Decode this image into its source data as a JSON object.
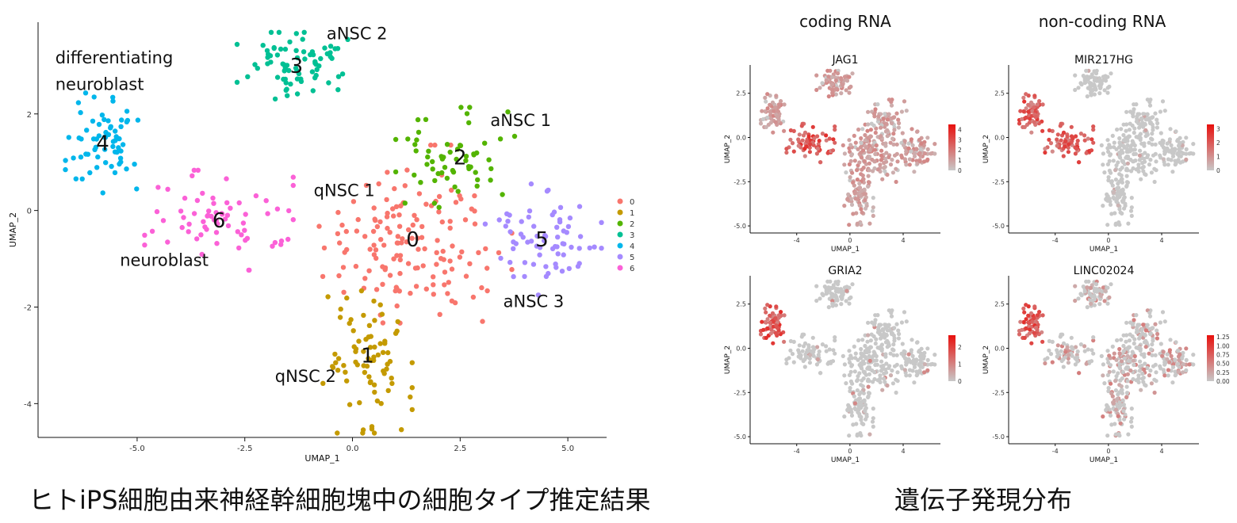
{
  "captions": {
    "left": "ヒトiPS細胞由来神経幹細胞塊中の細胞タイプ推定結果",
    "right": "遺伝子発現分布"
  },
  "column_titles": {
    "left": "coding RNA",
    "right": "non-coding RNA"
  },
  "colors": {
    "clusters": [
      "#F8766D",
      "#C49A00",
      "#53B400",
      "#00C094",
      "#00B6EB",
      "#A58AFF",
      "#FB61D7"
    ],
    "expr_low": "#c8c8c8",
    "expr_high": "#e8100d"
  },
  "chart_data": [
    {
      "type": "scatter",
      "title": "",
      "xlabel": "UMAP_1",
      "ylabel": "UMAP_2",
      "xlim": [
        -7.3,
        5.9
      ],
      "ylim": [
        -4.7,
        3.9
      ],
      "xticks": [
        -5.0,
        -2.5,
        0.0,
        2.5,
        5.0
      ],
      "xtick_labels": [
        "-5.0",
        "-2.5",
        "0.0",
        "2.5",
        "5.0"
      ],
      "yticks": [
        -4,
        -2,
        0,
        2
      ],
      "ytick_labels": [
        "-4",
        "-2",
        "0",
        "2"
      ],
      "legend": {
        "position": "right",
        "labels": [
          "0",
          "1",
          "2",
          "3",
          "4",
          "5",
          "6"
        ]
      },
      "clusters": [
        {
          "id": "0",
          "label": "0",
          "center": [
            1.4,
            -0.6
          ],
          "spread": [
            1.0,
            0.85
          ],
          "n": 150
        },
        {
          "id": "1",
          "label": "1",
          "center": [
            0.35,
            -3.0
          ],
          "spread": [
            0.45,
            0.7
          ],
          "n": 80
        },
        {
          "id": "2",
          "label": "2",
          "center": [
            2.5,
            1.1
          ],
          "spread": [
            0.65,
            0.45
          ],
          "n": 60
        },
        {
          "id": "3",
          "label": "3",
          "center": [
            -1.3,
            3.0
          ],
          "spread": [
            0.6,
            0.3
          ],
          "n": 75
        },
        {
          "id": "4",
          "label": "4",
          "center": [
            -5.8,
            1.4
          ],
          "spread": [
            0.5,
            0.45
          ],
          "n": 65
        },
        {
          "id": "5",
          "label": "5",
          "center": [
            4.4,
            -0.6
          ],
          "spread": [
            0.6,
            0.5
          ],
          "n": 70
        },
        {
          "id": "6",
          "label": "6",
          "center": [
            -3.1,
            -0.2
          ],
          "spread": [
            0.75,
            0.45
          ],
          "n": 70
        }
      ],
      "annotations": [
        {
          "text": "differentiating",
          "x": -6.9,
          "y": 3.05
        },
        {
          "text": "neuroblast",
          "x": -6.9,
          "y": 2.5
        },
        {
          "text": "aNSC 2",
          "x": -0.6,
          "y": 3.55
        },
        {
          "text": "aNSC 1",
          "x": 3.2,
          "y": 1.75
        },
        {
          "text": "qNSC 1",
          "x": -0.9,
          "y": 0.3
        },
        {
          "text": "neuroblast",
          "x": -5.4,
          "y": -1.15
        },
        {
          "text": "aNSC 3",
          "x": 3.5,
          "y": -2.0
        },
        {
          "text": "qNSC 2",
          "x": -1.8,
          "y": -3.55
        }
      ]
    },
    {
      "type": "scatter",
      "title": "JAG1",
      "xlabel": "UMAP_1",
      "ylabel": "UMAP_2",
      "xlim": [
        -7.5,
        6.8
      ],
      "ylim": [
        -5.4,
        4.1
      ],
      "xticks": [
        -4,
        0,
        4
      ],
      "xtick_labels": [
        "-4",
        "0",
        "4"
      ],
      "yticks": [
        2.5,
        0.0,
        -2.5,
        -5.0
      ],
      "ytick_labels": [
        "2.5",
        "0.0",
        "-2.5",
        "-5.0"
      ],
      "legend": {
        "position": "right",
        "max": 4.5,
        "ticks": [
          4,
          3,
          2,
          1,
          0
        ],
        "tick_labels": [
          "4",
          "3",
          "2",
          "1",
          "0"
        ]
      },
      "expression": {
        "high_clusters": [
          "6"
        ],
        "high_level": 3.5,
        "base_level": 1.4,
        "base_prob": 0.9
      }
    },
    {
      "type": "scatter",
      "title": "MIR217HG",
      "xlabel": "UMAP_1",
      "ylabel": "UMAP_2",
      "xlim": [
        -7.5,
        6.8
      ],
      "ylim": [
        -5.4,
        4.1
      ],
      "xticks": [
        -4,
        0,
        4
      ],
      "xtick_labels": [
        "-4",
        "0",
        "4"
      ],
      "yticks": [
        2.5,
        0.0,
        -2.5,
        -5.0
      ],
      "ytick_labels": [
        "2.5",
        "0.0",
        "-2.5",
        "-5.0"
      ],
      "legend": {
        "position": "right",
        "max": 3.3,
        "ticks": [
          3,
          2,
          1,
          0
        ],
        "tick_labels": [
          "3",
          "2",
          "1",
          "0"
        ]
      },
      "expression": {
        "high_clusters": [
          "6",
          "4"
        ],
        "high_level": 2.4,
        "base_level": 0.6,
        "base_prob": 0.05
      }
    },
    {
      "type": "scatter",
      "title": "GRIA2",
      "xlabel": "UMAP_1",
      "ylabel": "UMAP_2",
      "xlim": [
        -7.5,
        6.8
      ],
      "ylim": [
        -5.4,
        4.1
      ],
      "xticks": [
        -4,
        0,
        4
      ],
      "xtick_labels": [
        "-4",
        "0",
        "4"
      ],
      "yticks": [
        2.5,
        0.0,
        -2.5,
        -5.0
      ],
      "ytick_labels": [
        "2.5",
        "0.0",
        "-2.5",
        "-5.0"
      ],
      "legend": {
        "position": "right",
        "max": 2.7,
        "ticks": [
          2,
          1,
          0
        ],
        "tick_labels": [
          "2",
          "1",
          "0"
        ]
      },
      "expression": {
        "high_clusters": [
          "4"
        ],
        "high_level": 2.1,
        "base_level": 0.8,
        "base_prob": 0.06
      }
    },
    {
      "type": "scatter",
      "title": "LINC02024",
      "xlabel": "UMAP_1",
      "ylabel": "UMAP_2",
      "xlim": [
        -7.5,
        6.8
      ],
      "ylim": [
        -5.4,
        4.1
      ],
      "xticks": [
        -4,
        0,
        4
      ],
      "xtick_labels": [
        "-4",
        "0",
        "4"
      ],
      "yticks": [
        2.5,
        0.0,
        -2.5,
        -5.0
      ],
      "ytick_labels": [
        "2.5",
        "0.0",
        "-2.5",
        "-5.0"
      ],
      "legend": {
        "position": "right",
        "max": 1.3,
        "ticks": [
          1.25,
          1.0,
          0.75,
          0.5,
          0.25,
          0.0
        ],
        "tick_labels": [
          "1.25",
          "1.00",
          "0.75",
          "0.50",
          "0.25",
          "0.00"
        ]
      },
      "expression": {
        "high_clusters": [
          "4"
        ],
        "high_level": 1.0,
        "base_level": 0.45,
        "base_prob": 0.35
      }
    }
  ]
}
